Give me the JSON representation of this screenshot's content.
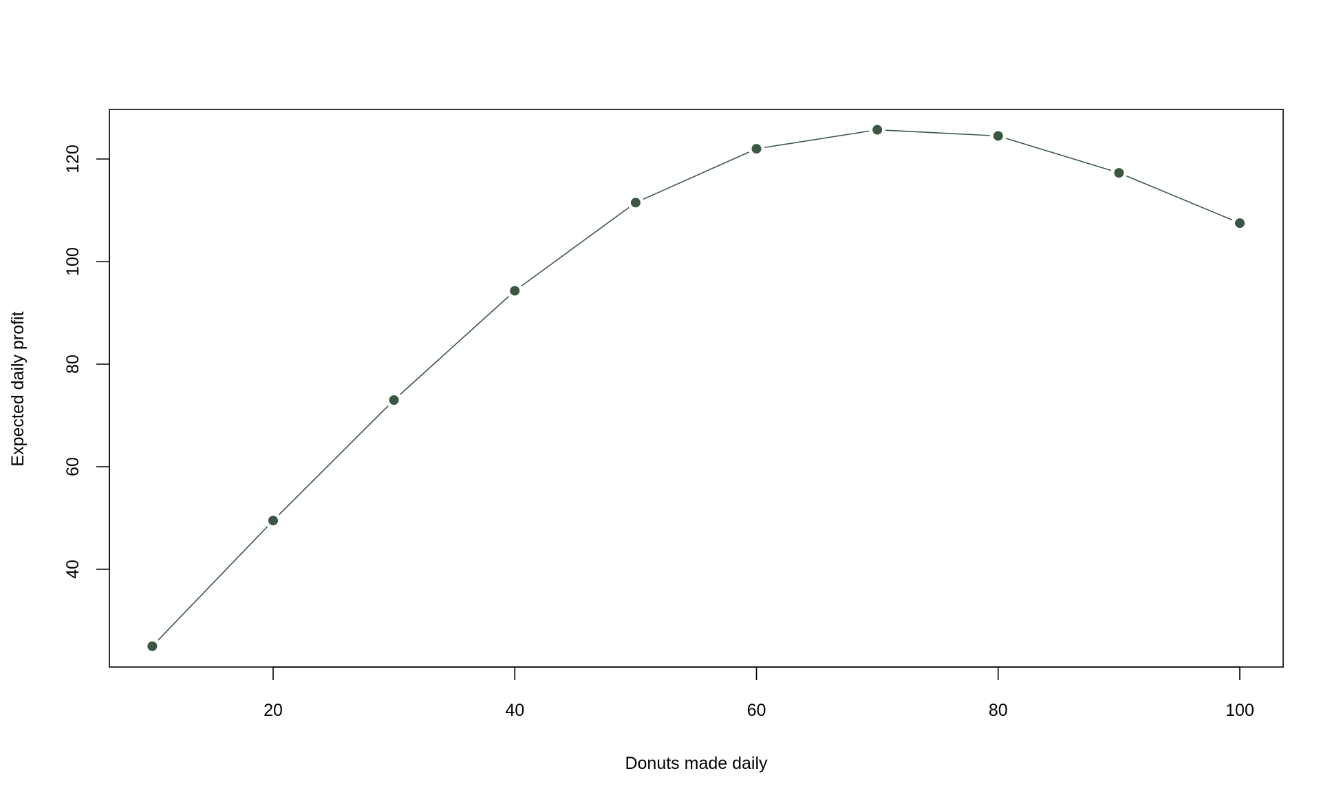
{
  "chart_data": {
    "type": "line",
    "title": "",
    "xlabel": "Donuts made daily",
    "ylabel": "Expected daily profit",
    "x": [
      10,
      20,
      30,
      40,
      50,
      60,
      70,
      80,
      90,
      100
    ],
    "series": [
      {
        "values": [
          25,
          49.5,
          73,
          94.3,
          111.5,
          122,
          125.7,
          124.5,
          117.3,
          107.5
        ]
      }
    ],
    "xlim": [
      6.4,
      103.6
    ],
    "ylim": [
      22,
      130.5
    ],
    "xticks": [
      "20",
      "40",
      "60",
      "80",
      "100"
    ],
    "yticks": [
      "40",
      "60",
      "80",
      "100",
      "120"
    ],
    "grid": false,
    "legend": "none",
    "color": "#3b5743",
    "marker": "filled-circle"
  }
}
